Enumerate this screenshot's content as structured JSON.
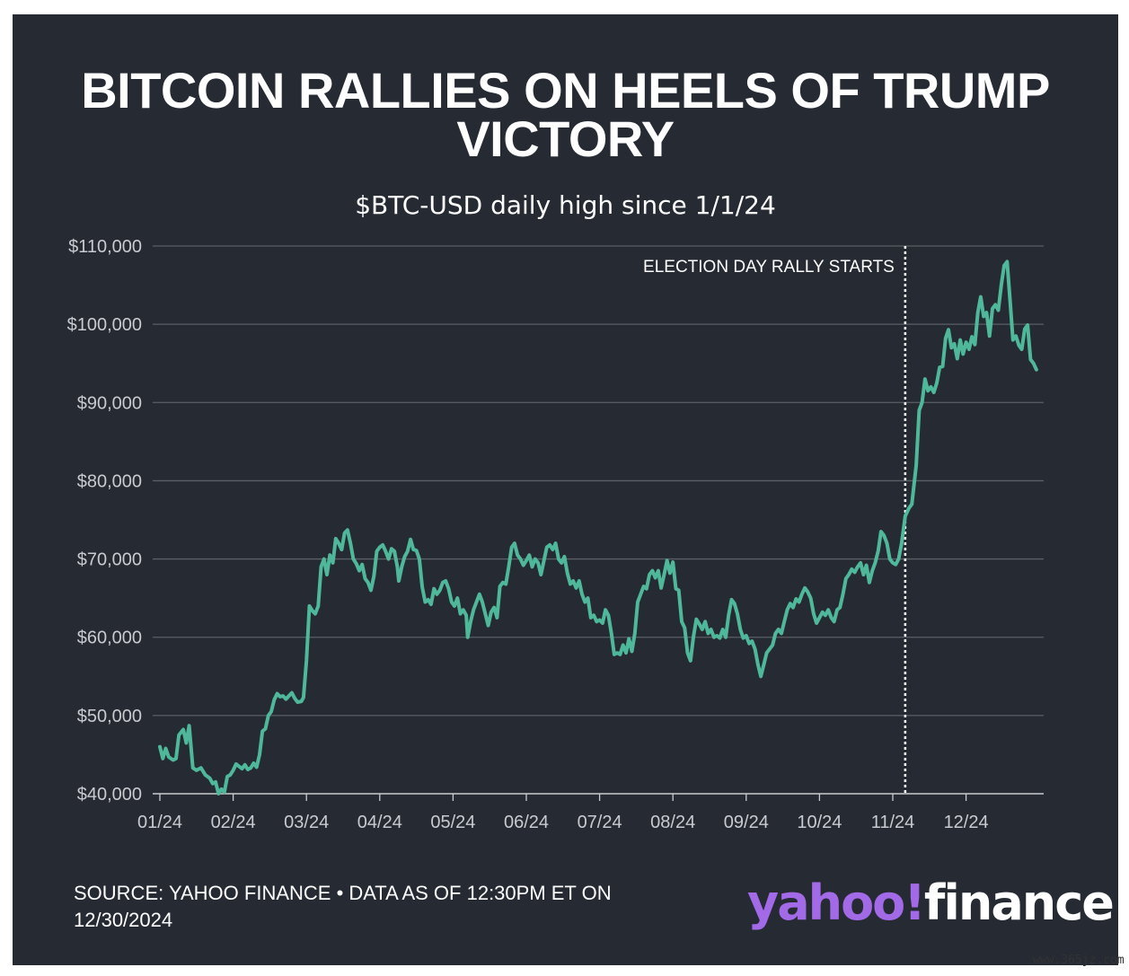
{
  "header": {
    "title_line1": "BITCOIN RALLIES ON HEELS OF TRUMP",
    "title_line2": "VICTORY",
    "subtitle": "$BTC-USD daily high since 1/1/24"
  },
  "footer": {
    "source_line1": "SOURCE: YAHOO FINANCE • DATA AS OF 12:30PM ET ON",
    "source_line2": "12/30/2024",
    "logo_part1": "yahoo",
    "logo_slash": "!",
    "logo_part2": "finance",
    "watermark": "www.365jz.com"
  },
  "colors": {
    "background": "#252a33",
    "line": "#4fb89a",
    "grid": "#5b5f66",
    "text": "#ffffff",
    "axis_text": "#c9cbd0",
    "logo_accent": "#a36ae8"
  },
  "chart_data": {
    "type": "line",
    "title": "BITCOIN RALLIES ON HEELS OF TRUMP VICTORY",
    "subtitle": "$BTC-USD daily high since 1/1/24",
    "xlabel": "",
    "ylabel": "",
    "ylim": [
      40000,
      110000
    ],
    "xlim": [
      0,
      12.3
    ],
    "yticks": [
      40000,
      50000,
      60000,
      70000,
      80000,
      90000,
      100000,
      110000
    ],
    "ytick_labels": [
      "$40,000",
      "$50,000",
      "$60,000",
      "$70,000",
      "$80,000",
      "$90,000",
      "$100,000",
      "$110,000"
    ],
    "xticks": [
      0,
      1,
      2,
      3,
      4,
      5,
      6,
      7,
      8,
      9,
      10,
      11
    ],
    "xtick_labels": [
      "01/24",
      "02/24",
      "03/24",
      "04/24",
      "05/24",
      "06/24",
      "07/24",
      "08/24",
      "09/24",
      "10/24",
      "11/24",
      "12/24"
    ],
    "grid": true,
    "annotation": {
      "label": "ELECTION DAY RALLY STARTS",
      "x": 10.17
    },
    "series": [
      {
        "values": [
          [
            0.0,
            46000
          ],
          [
            0.04,
            44500
          ],
          [
            0.08,
            45800
          ],
          [
            0.12,
            44700
          ],
          [
            0.18,
            44300
          ],
          [
            0.22,
            44500
          ],
          [
            0.26,
            47500
          ],
          [
            0.32,
            48200
          ],
          [
            0.36,
            46500
          ],
          [
            0.4,
            48700
          ],
          [
            0.45,
            43300
          ],
          [
            0.5,
            43000
          ],
          [
            0.56,
            43300
          ],
          [
            0.62,
            42400
          ],
          [
            0.68,
            42000
          ],
          [
            0.72,
            41300
          ],
          [
            0.76,
            41500
          ],
          [
            0.8,
            40000
          ],
          [
            0.84,
            40600
          ],
          [
            0.88,
            40200
          ],
          [
            0.92,
            42200
          ],
          [
            0.96,
            42400
          ],
          [
            1.0,
            43000
          ],
          [
            1.04,
            43800
          ],
          [
            1.08,
            43500
          ],
          [
            1.12,
            43200
          ],
          [
            1.16,
            43700
          ],
          [
            1.2,
            43100
          ],
          [
            1.24,
            43300
          ],
          [
            1.28,
            43900
          ],
          [
            1.32,
            43400
          ],
          [
            1.36,
            45000
          ],
          [
            1.4,
            48000
          ],
          [
            1.44,
            48300
          ],
          [
            1.48,
            50000
          ],
          [
            1.52,
            50500
          ],
          [
            1.56,
            52000
          ],
          [
            1.6,
            52800
          ],
          [
            1.64,
            52400
          ],
          [
            1.68,
            52500
          ],
          [
            1.72,
            52100
          ],
          [
            1.76,
            52500
          ],
          [
            1.8,
            52900
          ],
          [
            1.84,
            52200
          ],
          [
            1.88,
            51700
          ],
          [
            1.93,
            51800
          ],
          [
            1.96,
            52300
          ],
          [
            2.0,
            57000
          ],
          [
            2.04,
            64000
          ],
          [
            2.08,
            63400
          ],
          [
            2.12,
            63000
          ],
          [
            2.16,
            64000
          ],
          [
            2.2,
            69000
          ],
          [
            2.24,
            70000
          ],
          [
            2.28,
            68000
          ],
          [
            2.32,
            70500
          ],
          [
            2.36,
            69500
          ],
          [
            2.4,
            72600
          ],
          [
            2.44,
            72000
          ],
          [
            2.48,
            71200
          ],
          [
            2.52,
            73300
          ],
          [
            2.56,
            73700
          ],
          [
            2.6,
            72000
          ],
          [
            2.64,
            70000
          ],
          [
            2.68,
            69400
          ],
          [
            2.72,
            68500
          ],
          [
            2.76,
            69300
          ],
          [
            2.8,
            67500
          ],
          [
            2.84,
            67000
          ],
          [
            2.88,
            66000
          ],
          [
            2.92,
            67800
          ],
          [
            2.96,
            71000
          ],
          [
            3.0,
            71500
          ],
          [
            3.04,
            71800
          ],
          [
            3.08,
            71000
          ],
          [
            3.12,
            70000
          ],
          [
            3.16,
            71300
          ],
          [
            3.2,
            71000
          ],
          [
            3.24,
            69000
          ],
          [
            3.26,
            67200
          ],
          [
            3.3,
            69000
          ],
          [
            3.34,
            70300
          ],
          [
            3.38,
            71000
          ],
          [
            3.42,
            72500
          ],
          [
            3.46,
            71200
          ],
          [
            3.5,
            71100
          ],
          [
            3.54,
            70000
          ],
          [
            3.58,
            66400
          ],
          [
            3.62,
            64500
          ],
          [
            3.66,
            64800
          ],
          [
            3.7,
            64200
          ],
          [
            3.74,
            66200
          ],
          [
            3.78,
            65500
          ],
          [
            3.82,
            66000
          ],
          [
            3.86,
            67000
          ],
          [
            3.9,
            67200
          ],
          [
            3.94,
            66200
          ],
          [
            3.98,
            64500
          ],
          [
            4.02,
            64000
          ],
          [
            4.06,
            65000
          ],
          [
            4.1,
            63000
          ],
          [
            4.14,
            63500
          ],
          [
            4.18,
            62800
          ],
          [
            4.2,
            60000
          ],
          [
            4.24,
            62000
          ],
          [
            4.28,
            63500
          ],
          [
            4.32,
            64500
          ],
          [
            4.36,
            65500
          ],
          [
            4.4,
            64500
          ],
          [
            4.44,
            63000
          ],
          [
            4.48,
            61500
          ],
          [
            4.52,
            63200
          ],
          [
            4.56,
            63800
          ],
          [
            4.6,
            62500
          ],
          [
            4.64,
            66500
          ],
          [
            4.68,
            67000
          ],
          [
            4.72,
            66800
          ],
          [
            4.76,
            69000
          ],
          [
            4.8,
            71500
          ],
          [
            4.84,
            72000
          ],
          [
            4.88,
            70500
          ],
          [
            4.92,
            70000
          ],
          [
            4.96,
            69200
          ],
          [
            5.0,
            69800
          ],
          [
            5.04,
            70500
          ],
          [
            5.08,
            69000
          ],
          [
            5.12,
            70000
          ],
          [
            5.16,
            69500
          ],
          [
            5.2,
            68000
          ],
          [
            5.24,
            69800
          ],
          [
            5.28,
            71500
          ],
          [
            5.32,
            71800
          ],
          [
            5.36,
            71200
          ],
          [
            5.4,
            72000
          ],
          [
            5.44,
            70000
          ],
          [
            5.48,
            69500
          ],
          [
            5.52,
            70300
          ],
          [
            5.56,
            68200
          ],
          [
            5.6,
            66800
          ],
          [
            5.64,
            67200
          ],
          [
            5.68,
            66300
          ],
          [
            5.72,
            67200
          ],
          [
            5.76,
            65500
          ],
          [
            5.8,
            64500
          ],
          [
            5.84,
            65000
          ],
          [
            5.88,
            62500
          ],
          [
            5.92,
            62800
          ],
          [
            5.96,
            62000
          ],
          [
            6.0,
            62200
          ],
          [
            6.04,
            61800
          ],
          [
            6.08,
            63500
          ],
          [
            6.12,
            62800
          ],
          [
            6.16,
            60500
          ],
          [
            6.2,
            57800
          ],
          [
            6.24,
            58000
          ],
          [
            6.28,
            57800
          ],
          [
            6.32,
            59000
          ],
          [
            6.36,
            58000
          ],
          [
            6.4,
            59800
          ],
          [
            6.44,
            58200
          ],
          [
            6.48,
            60500
          ],
          [
            6.52,
            64500
          ],
          [
            6.56,
            65500
          ],
          [
            6.6,
            66500
          ],
          [
            6.64,
            66200
          ],
          [
            6.68,
            68000
          ],
          [
            6.72,
            68500
          ],
          [
            6.76,
            67600
          ],
          [
            6.8,
            68500
          ],
          [
            6.84,
            66300
          ],
          [
            6.88,
            68000
          ],
          [
            6.92,
            69800
          ],
          [
            6.96,
            68200
          ],
          [
            7.0,
            69600
          ],
          [
            7.04,
            66200
          ],
          [
            7.08,
            66000
          ],
          [
            7.12,
            62000
          ],
          [
            7.16,
            61200
          ],
          [
            7.2,
            58000
          ],
          [
            7.24,
            57000
          ],
          [
            7.28,
            60000
          ],
          [
            7.32,
            62300
          ],
          [
            7.36,
            61700
          ],
          [
            7.4,
            61000
          ],
          [
            7.44,
            62000
          ],
          [
            7.48,
            60500
          ],
          [
            7.52,
            61000
          ],
          [
            7.56,
            60000
          ],
          [
            7.6,
            60200
          ],
          [
            7.64,
            59900
          ],
          [
            7.68,
            61000
          ],
          [
            7.72,
            60000
          ],
          [
            7.76,
            62800
          ],
          [
            7.8,
            64800
          ],
          [
            7.84,
            64300
          ],
          [
            7.88,
            63000
          ],
          [
            7.92,
            61000
          ],
          [
            7.96,
            59900
          ],
          [
            8.0,
            60200
          ],
          [
            8.04,
            59200
          ],
          [
            8.08,
            59500
          ],
          [
            8.12,
            58500
          ],
          [
            8.16,
            56500
          ],
          [
            8.2,
            55000
          ],
          [
            8.24,
            56500
          ],
          [
            8.28,
            58000
          ],
          [
            8.32,
            58500
          ],
          [
            8.36,
            59000
          ],
          [
            8.4,
            60500
          ],
          [
            8.44,
            61000
          ],
          [
            8.48,
            60500
          ],
          [
            8.52,
            62000
          ],
          [
            8.56,
            63500
          ],
          [
            8.6,
            64300
          ],
          [
            8.64,
            63800
          ],
          [
            8.68,
            64900
          ],
          [
            8.72,
            64500
          ],
          [
            8.76,
            65500
          ],
          [
            8.8,
            66300
          ],
          [
            8.84,
            65800
          ],
          [
            8.88,
            65000
          ],
          [
            8.92,
            63000
          ],
          [
            8.96,
            61800
          ],
          [
            9.0,
            62500
          ],
          [
            9.04,
            63200
          ],
          [
            9.08,
            62800
          ],
          [
            9.12,
            63500
          ],
          [
            9.16,
            62500
          ],
          [
            9.2,
            62000
          ],
          [
            9.24,
            63500
          ],
          [
            9.28,
            63800
          ],
          [
            9.32,
            65500
          ],
          [
            9.36,
            67500
          ],
          [
            9.4,
            68000
          ],
          [
            9.44,
            68700
          ],
          [
            9.48,
            68300
          ],
          [
            9.52,
            69000
          ],
          [
            9.56,
            69500
          ],
          [
            9.6,
            68000
          ],
          [
            9.64,
            69200
          ],
          [
            9.68,
            67000
          ],
          [
            9.72,
            68500
          ],
          [
            9.76,
            69500
          ],
          [
            9.8,
            71000
          ],
          [
            9.84,
            73500
          ],
          [
            9.88,
            73000
          ],
          [
            9.92,
            72000
          ],
          [
            9.96,
            70000
          ],
          [
            10.0,
            69500
          ],
          [
            10.04,
            69300
          ],
          [
            10.08,
            70000
          ],
          [
            10.12,
            72000
          ],
          [
            10.17,
            75500
          ],
          [
            10.22,
            76500
          ],
          [
            10.26,
            77000
          ],
          [
            10.32,
            82000
          ],
          [
            10.36,
            89000
          ],
          [
            10.4,
            90000
          ],
          [
            10.44,
            93000
          ],
          [
            10.48,
            91500
          ],
          [
            10.52,
            92000
          ],
          [
            10.56,
            91300
          ],
          [
            10.6,
            92500
          ],
          [
            10.64,
            94500
          ],
          [
            10.68,
            94600
          ],
          [
            10.72,
            98200
          ],
          [
            10.76,
            99300
          ],
          [
            10.8,
            97000
          ],
          [
            10.84,
            97500
          ],
          [
            10.88,
            95600
          ],
          [
            10.92,
            98000
          ],
          [
            10.96,
            96200
          ],
          [
            11.0,
            97700
          ],
          [
            11.04,
            96800
          ],
          [
            11.08,
            98400
          ],
          [
            11.12,
            97400
          ],
          [
            11.16,
            101500
          ],
          [
            11.2,
            103500
          ],
          [
            11.24,
            101000
          ],
          [
            11.28,
            101500
          ],
          [
            11.32,
            98500
          ],
          [
            11.36,
            102000
          ],
          [
            11.4,
            102500
          ],
          [
            11.44,
            101800
          ],
          [
            11.48,
            105000
          ],
          [
            11.52,
            107500
          ],
          [
            11.56,
            108000
          ],
          [
            11.6,
            103000
          ],
          [
            11.64,
            98000
          ],
          [
            11.68,
            98500
          ],
          [
            11.72,
            97300
          ],
          [
            11.76,
            96800
          ],
          [
            11.8,
            99400
          ],
          [
            11.84,
            99900
          ],
          [
            11.88,
            95500
          ],
          [
            11.92,
            95000
          ],
          [
            11.96,
            94200
          ]
        ]
      }
    ]
  }
}
